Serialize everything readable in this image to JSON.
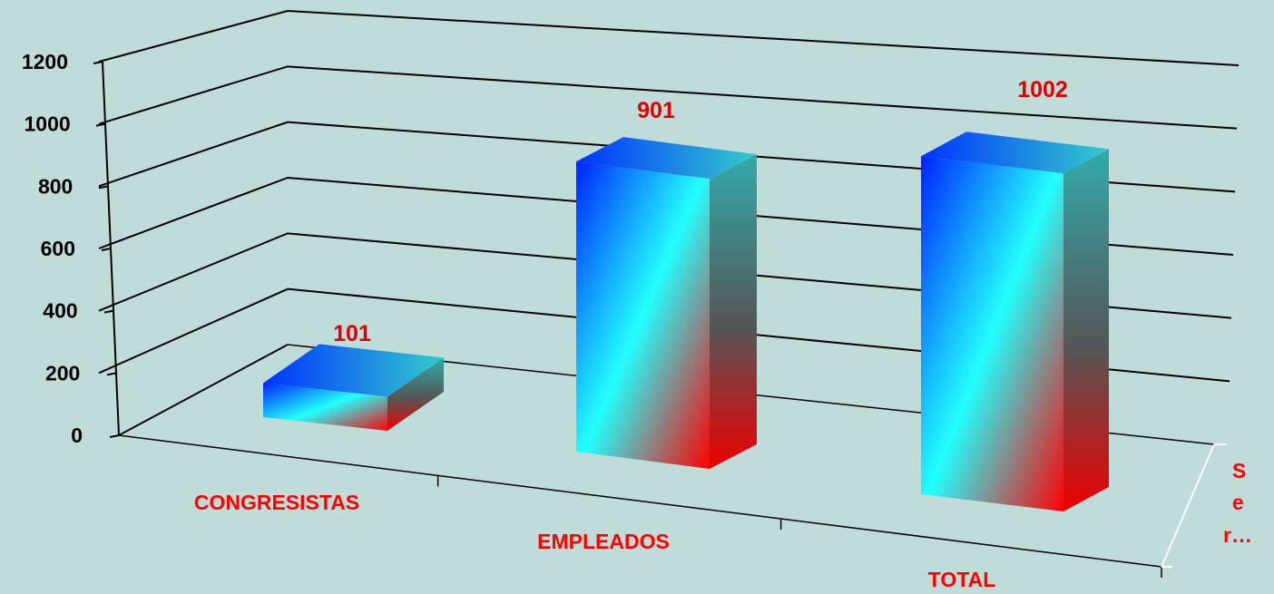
{
  "chart_data": {
    "type": "bar",
    "style": "3d-column",
    "categories": [
      "CONGRESISTAS",
      "EMPLEADOS",
      "TOTAL"
    ],
    "series": [
      {
        "values": [
          101,
          901,
          1002
        ]
      }
    ],
    "data_labels": [
      "101",
      "901",
      "1002"
    ],
    "yticks": [
      0,
      200,
      400,
      600,
      800,
      1000,
      1200
    ],
    "ylim": [
      0,
      1200
    ],
    "grid": true,
    "legend": "none",
    "depth_axis_label_lines": [
      "S",
      "e",
      "r…"
    ],
    "colors": {
      "background": "#c0dcd9",
      "category_label": "#ff0000",
      "data_label": "#e00000",
      "bar_top": "#0020ff",
      "bar_mid": "#22ffff",
      "bar_bottom": "#ff0000"
    }
  }
}
